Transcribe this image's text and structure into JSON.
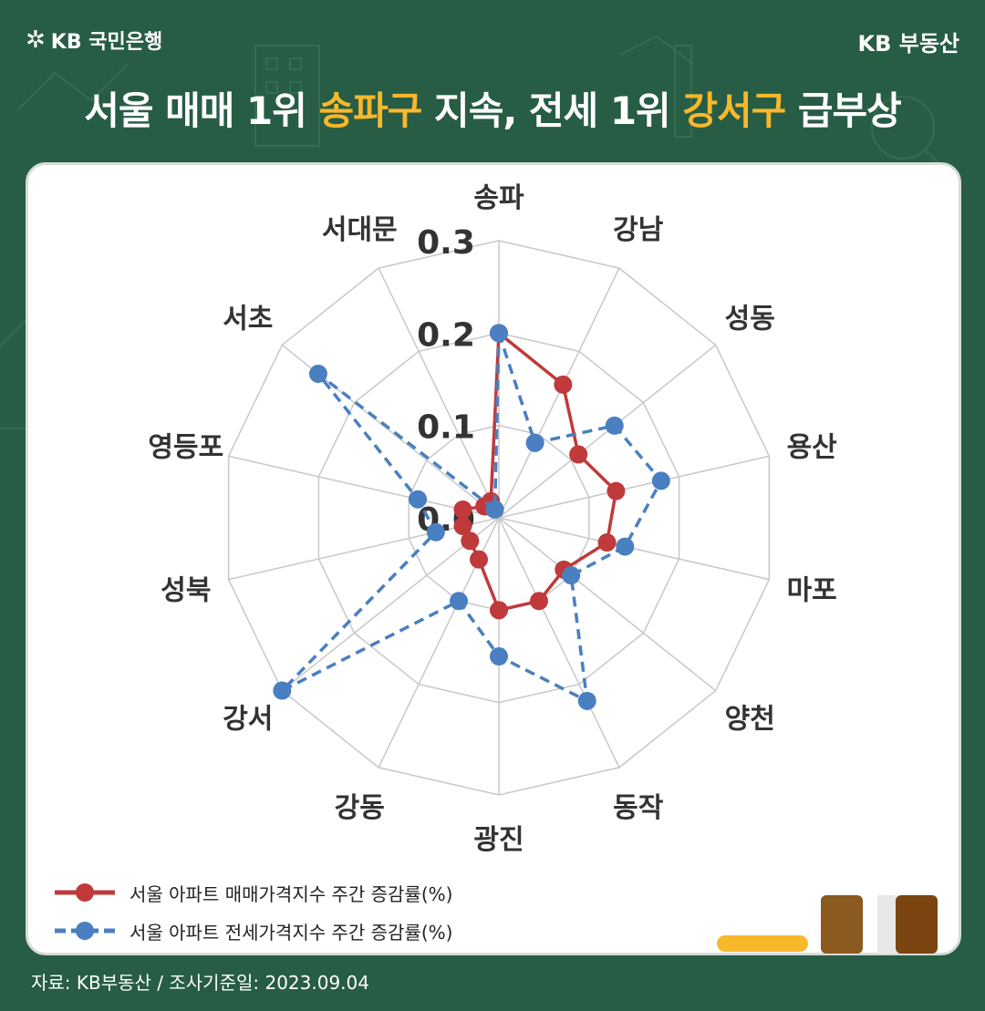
{
  "header": {
    "logo_text": "KB 국민은행",
    "brand_right": "KB 부동산",
    "title_part1": "서울 매매 1위 ",
    "title_hl1": "송파구",
    "title_part2": " 지속, 전세 1위 ",
    "title_hl2": "강서구",
    "title_part3": " 급부상"
  },
  "chart_data": {
    "type": "radar",
    "categories": [
      "송파",
      "강남",
      "성동",
      "용산",
      "마포",
      "양천",
      "동작",
      "광진",
      "강동",
      "강서",
      "성북",
      "영등포",
      "서초",
      "서대문"
    ],
    "axis_ticks": [
      "0.0",
      "0.1",
      "0.2",
      "0.3"
    ],
    "rmax": 0.3,
    "series": [
      {
        "name": "서울 아파트 매매가격지수 주간 증감률(%)",
        "color": "#c0393b",
        "dash": false,
        "values": [
          0.2,
          0.16,
          0.11,
          0.13,
          0.12,
          0.09,
          0.1,
          0.1,
          0.05,
          0.04,
          0.04,
          0.04,
          0.02,
          0.02
        ]
      },
      {
        "name": "서울 아파트 전세가격지수 주간 증감률(%)",
        "color": "#4a7fc1",
        "dash": true,
        "values": [
          0.2,
          0.09,
          0.16,
          0.18,
          0.14,
          0.1,
          0.22,
          0.15,
          0.1,
          0.3,
          0.07,
          0.09,
          0.25,
          0.01
        ]
      }
    ]
  },
  "source": "자료: KB부동산 / 조사기준일: 2023.09.04"
}
